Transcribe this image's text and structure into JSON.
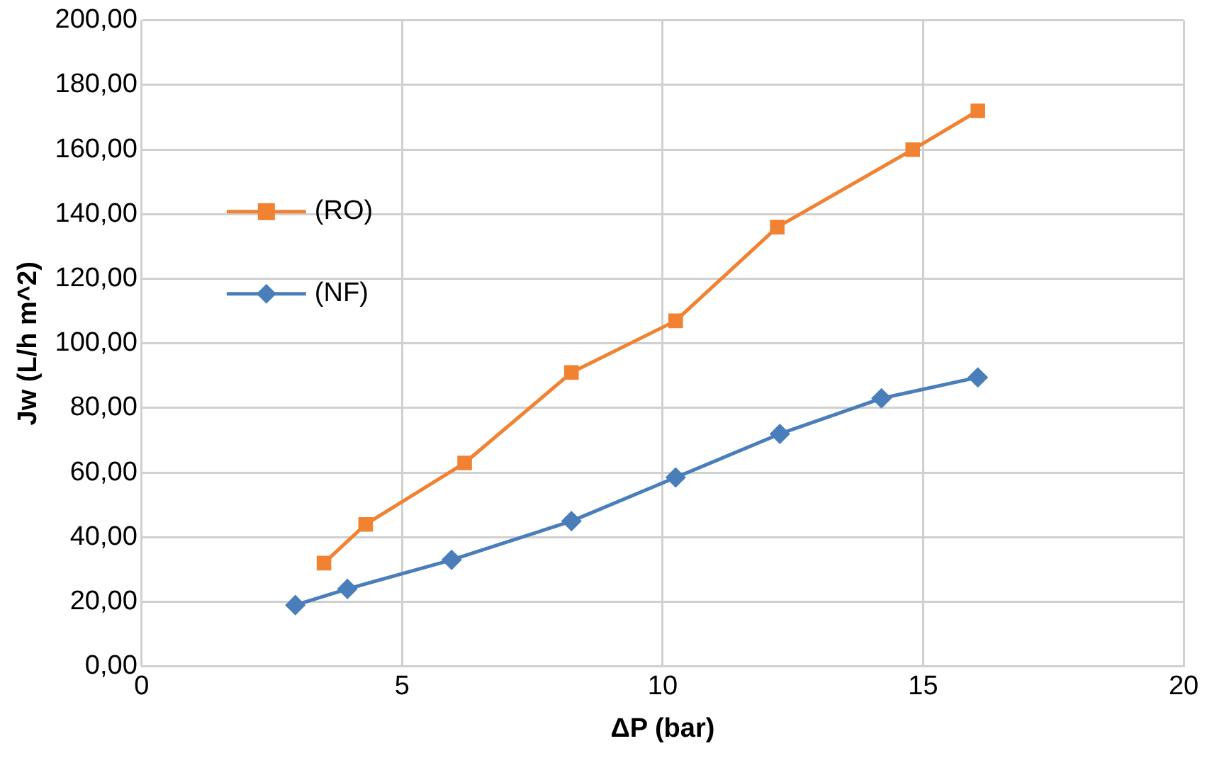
{
  "chart_data": {
    "type": "line",
    "xlabel": "ΔP (bar)",
    "ylabel": "Jw (L/h m^2)",
    "xlim": [
      0,
      20
    ],
    "xticks": [
      0,
      5,
      10,
      15,
      20
    ],
    "ylim": [
      0,
      200
    ],
    "yticks": [
      {
        "value": 0,
        "label": "0,00"
      },
      {
        "value": 20,
        "label": "20,00"
      },
      {
        "value": 40,
        "label": "40,00"
      },
      {
        "value": 60,
        "label": "60,00"
      },
      {
        "value": 80,
        "label": "80,00"
      },
      {
        "value": 100,
        "label": "100,00"
      },
      {
        "value": 120,
        "label": "120,00"
      },
      {
        "value": 140,
        "label": "140,00"
      },
      {
        "value": 160,
        "label": "160,00"
      },
      {
        "value": 180,
        "label": "180,00"
      },
      {
        "value": 200,
        "label": "200,00"
      }
    ],
    "grid": true,
    "legend": "top left",
    "line_style": "solid",
    "series": [
      {
        "name": "(RO)",
        "color": "#f08232",
        "marker": "square",
        "x": [
          3.5,
          4.3,
          6.2,
          8.25,
          10.25,
          12.2,
          14.8,
          16.05
        ],
        "values": [
          32,
          44,
          63,
          91,
          107,
          136,
          160,
          172
        ]
      },
      {
        "name": "(NF)",
        "color": "#4a7ebb",
        "marker": "diamond",
        "x": [
          2.95,
          3.95,
          5.95,
          8.25,
          10.25,
          12.25,
          14.2,
          16.05
        ],
        "values": [
          19,
          24,
          33,
          45,
          58.5,
          72,
          83,
          89.5
        ]
      }
    ]
  }
}
